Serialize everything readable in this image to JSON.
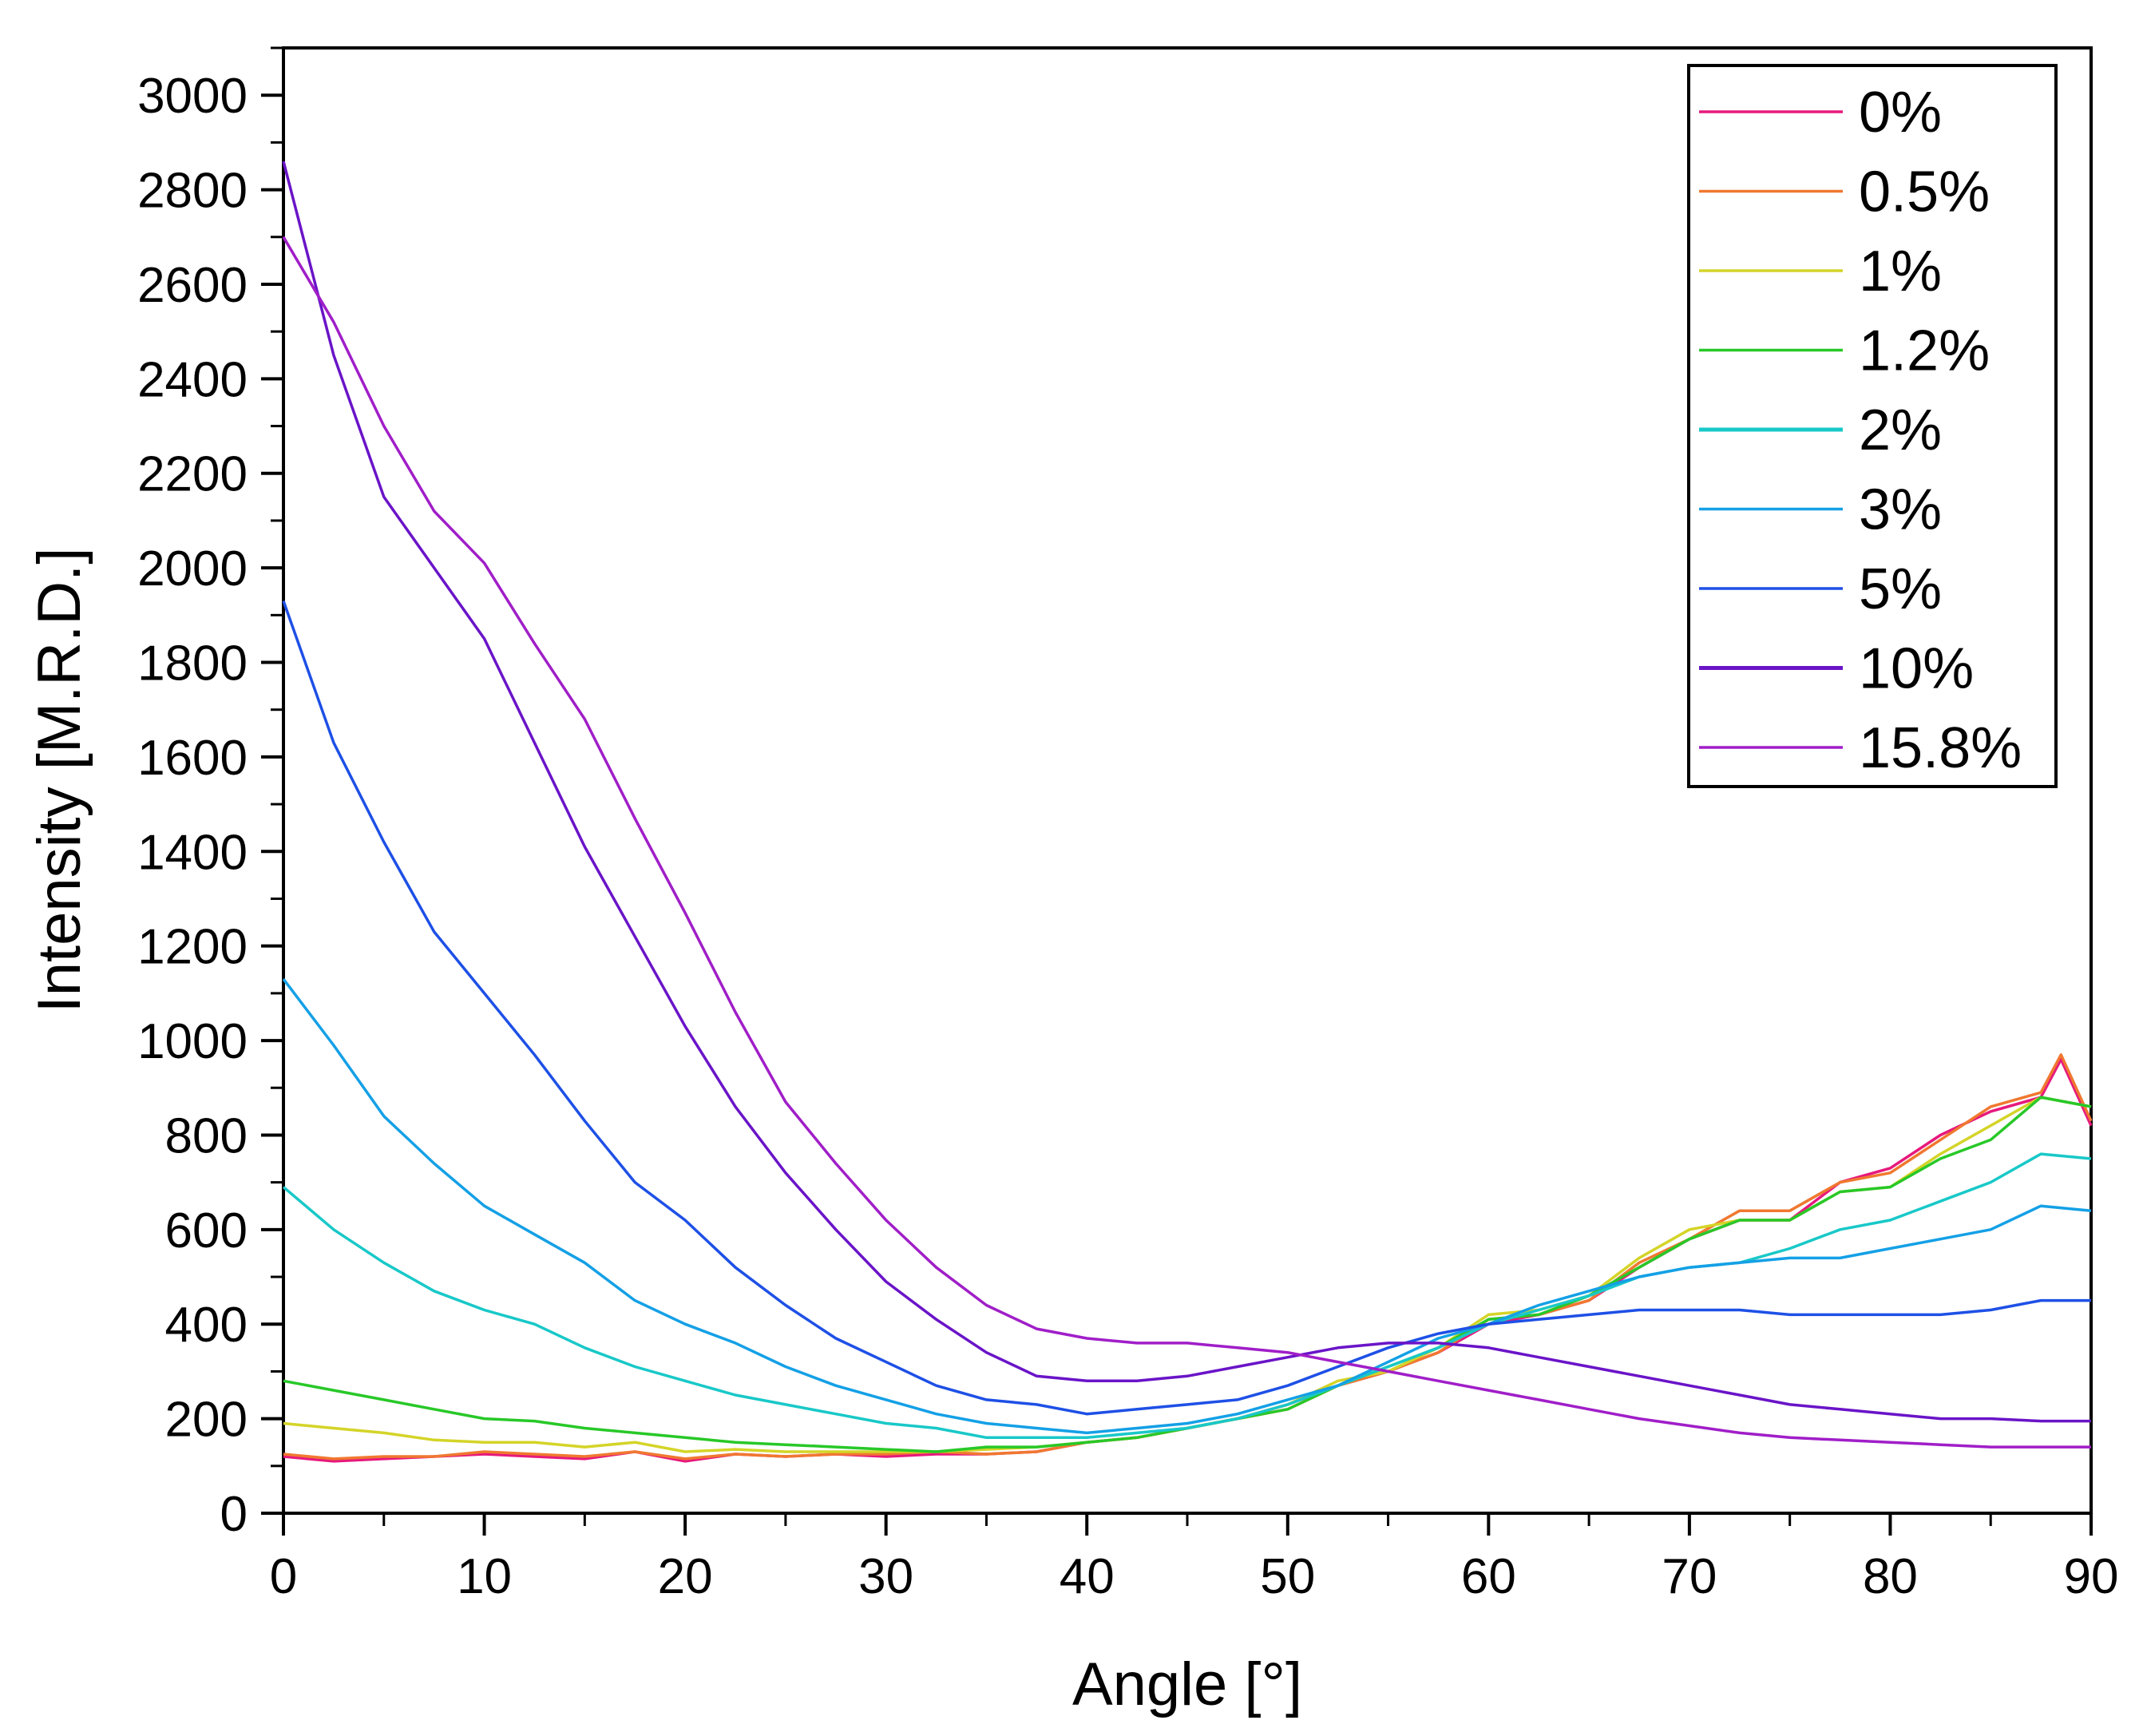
{
  "chart_data": {
    "type": "line",
    "title": "",
    "xlabel": "Angle [°]",
    "ylabel": "Intensity [M.R.D.]",
    "xlim": [
      0,
      90
    ],
    "ylim": [
      0,
      3100
    ],
    "xticks": [
      0,
      10,
      20,
      30,
      40,
      50,
      60,
      70,
      80,
      90
    ],
    "yticks": [
      0,
      200,
      400,
      600,
      800,
      1000,
      1200,
      1400,
      1600,
      1800,
      2000,
      2200,
      2400,
      2600,
      2800,
      3000
    ],
    "grid": false,
    "legend_position": "top-right",
    "series": [
      {
        "name": "0%",
        "color": "#e6197d",
        "x": [
          0,
          2.5,
          5,
          7.5,
          10,
          12.5,
          15,
          17.5,
          20,
          22.5,
          25,
          27.5,
          30,
          32.5,
          35,
          37.5,
          40,
          42.5,
          45,
          47.5,
          50,
          52.5,
          55,
          57.5,
          60,
          62.5,
          65,
          67.5,
          70,
          72.5,
          75,
          77.5,
          80,
          82.5,
          85,
          87.5,
          88.5,
          90
        ],
        "y": [
          120,
          110,
          115,
          120,
          125,
          120,
          115,
          130,
          110,
          125,
          120,
          125,
          120,
          125,
          125,
          130,
          150,
          160,
          180,
          200,
          230,
          270,
          300,
          340,
          400,
          420,
          450,
          520,
          580,
          620,
          620,
          700,
          730,
          800,
          850,
          880,
          960,
          820
        ]
      },
      {
        "name": "0.5%",
        "color": "#f07830",
        "x": [
          0,
          2.5,
          5,
          7.5,
          10,
          12.5,
          15,
          17.5,
          20,
          22.5,
          25,
          27.5,
          30,
          32.5,
          35,
          37.5,
          40,
          42.5,
          45,
          47.5,
          50,
          52.5,
          55,
          57.5,
          60,
          62.5,
          65,
          67.5,
          70,
          72.5,
          75,
          77.5,
          80,
          82.5,
          85,
          87.5,
          88.5,
          90
        ],
        "y": [
          125,
          115,
          120,
          120,
          130,
          125,
          120,
          130,
          115,
          125,
          120,
          125,
          125,
          130,
          125,
          130,
          150,
          160,
          180,
          200,
          220,
          270,
          300,
          340,
          410,
          420,
          450,
          530,
          580,
          640,
          640,
          700,
          720,
          790,
          860,
          890,
          970,
          830
        ]
      },
      {
        "name": "1%",
        "color": "#d4d428",
        "x": [
          0,
          2.5,
          5,
          7.5,
          10,
          12.5,
          15,
          17.5,
          20,
          22.5,
          25,
          27.5,
          30,
          32.5,
          35,
          37.5,
          40,
          42.5,
          45,
          47.5,
          50,
          52.5,
          55,
          57.5,
          60,
          62.5,
          65,
          67.5,
          70,
          72.5,
          75,
          77.5,
          80,
          82.5,
          85,
          87.5,
          90
        ],
        "y": [
          190,
          180,
          170,
          155,
          150,
          150,
          140,
          150,
          130,
          135,
          130,
          130,
          130,
          130,
          135,
          140,
          150,
          160,
          180,
          200,
          230,
          280,
          300,
          350,
          420,
          430,
          460,
          540,
          600,
          620,
          620,
          680,
          690,
          760,
          820,
          880,
          860
        ]
      },
      {
        "name": "1.2%",
        "color": "#28c828",
        "x": [
          0,
          2.5,
          5,
          7.5,
          10,
          12.5,
          15,
          17.5,
          20,
          22.5,
          25,
          27.5,
          30,
          32.5,
          35,
          37.5,
          40,
          42.5,
          45,
          47.5,
          50,
          52.5,
          55,
          57.5,
          60,
          62.5,
          65,
          67.5,
          70,
          72.5,
          75,
          77.5,
          80,
          82.5,
          85,
          87.5,
          90
        ],
        "y": [
          280,
          260,
          240,
          220,
          200,
          195,
          180,
          170,
          160,
          150,
          145,
          140,
          135,
          130,
          140,
          140,
          150,
          160,
          180,
          200,
          220,
          270,
          310,
          350,
          410,
          420,
          460,
          520,
          580,
          620,
          620,
          680,
          690,
          750,
          790,
          880,
          860
        ]
      },
      {
        "name": "2%",
        "color": "#19c8c8",
        "x": [
          0,
          2.5,
          5,
          7.5,
          10,
          12.5,
          15,
          17.5,
          20,
          22.5,
          25,
          27.5,
          30,
          32.5,
          35,
          37.5,
          40,
          42.5,
          45,
          47.5,
          50,
          52.5,
          55,
          57.5,
          60,
          62.5,
          65,
          67.5,
          70,
          72.5,
          75,
          77.5,
          80,
          82.5,
          85,
          87.5,
          90
        ],
        "y": [
          690,
          600,
          530,
          470,
          430,
          400,
          350,
          310,
          280,
          250,
          230,
          210,
          190,
          180,
          160,
          160,
          160,
          170,
          180,
          200,
          230,
          270,
          310,
          350,
          400,
          430,
          460,
          500,
          520,
          530,
          560,
          600,
          620,
          660,
          700,
          760,
          750
        ]
      },
      {
        "name": "3%",
        "color": "#14a0e6",
        "x": [
          0,
          2.5,
          5,
          7.5,
          10,
          12.5,
          15,
          17.5,
          20,
          22.5,
          25,
          27.5,
          30,
          32.5,
          35,
          37.5,
          40,
          42.5,
          45,
          47.5,
          50,
          52.5,
          55,
          57.5,
          60,
          62.5,
          65,
          67.5,
          70,
          72.5,
          75,
          77.5,
          80,
          82.5,
          85,
          87.5,
          90
        ],
        "y": [
          1130,
          990,
          840,
          740,
          650,
          590,
          530,
          450,
          400,
          360,
          310,
          270,
          240,
          210,
          190,
          180,
          170,
          180,
          190,
          210,
          240,
          270,
          320,
          370,
          400,
          440,
          470,
          500,
          520,
          530,
          540,
          540,
          560,
          580,
          600,
          650,
          640
        ]
      },
      {
        "name": "5%",
        "color": "#1e50e6",
        "x": [
          0,
          2.5,
          5,
          7.5,
          10,
          12.5,
          15,
          17.5,
          20,
          22.5,
          25,
          27.5,
          30,
          32.5,
          35,
          37.5,
          40,
          42.5,
          45,
          47.5,
          50,
          52.5,
          55,
          57.5,
          60,
          62.5,
          65,
          67.5,
          70,
          72.5,
          75,
          77.5,
          80,
          82.5,
          85,
          87.5,
          90
        ],
        "y": [
          1930,
          1630,
          1420,
          1230,
          1100,
          970,
          830,
          700,
          620,
          520,
          440,
          370,
          320,
          270,
          240,
          230,
          210,
          220,
          230,
          240,
          270,
          310,
          350,
          380,
          400,
          410,
          420,
          430,
          430,
          430,
          420,
          420,
          420,
          420,
          430,
          450,
          450
        ]
      },
      {
        "name": "10%",
        "color": "#6a14c8",
        "x": [
          0,
          2.5,
          5,
          7.5,
          10,
          12.5,
          15,
          17.5,
          20,
          22.5,
          25,
          27.5,
          30,
          32.5,
          35,
          37.5,
          40,
          42.5,
          45,
          47.5,
          50,
          52.5,
          55,
          57.5,
          60,
          62.5,
          65,
          67.5,
          70,
          72.5,
          75,
          77.5,
          80,
          82.5,
          85,
          87.5,
          90
        ],
        "y": [
          2860,
          2450,
          2150,
          2000,
          1850,
          1630,
          1410,
          1220,
          1030,
          860,
          720,
          600,
          490,
          410,
          340,
          290,
          280,
          280,
          290,
          310,
          330,
          350,
          360,
          360,
          350,
          330,
          310,
          290,
          270,
          250,
          230,
          220,
          210,
          200,
          200,
          195,
          195
        ]
      },
      {
        "name": "15.8%",
        "color": "#a01ec8",
        "x": [
          0,
          2.5,
          5,
          7.5,
          10,
          12.5,
          15,
          17.5,
          20,
          22.5,
          25,
          27.5,
          30,
          32.5,
          35,
          37.5,
          40,
          42.5,
          45,
          47.5,
          50,
          52.5,
          55,
          57.5,
          60,
          62.5,
          65,
          67.5,
          70,
          72.5,
          75,
          77.5,
          80,
          82.5,
          85,
          87.5,
          90
        ],
        "y": [
          2700,
          2520,
          2300,
          2120,
          2010,
          1840,
          1680,
          1470,
          1270,
          1060,
          870,
          740,
          620,
          520,
          440,
          390,
          370,
          360,
          360,
          350,
          340,
          320,
          300,
          280,
          260,
          240,
          220,
          200,
          185,
          170,
          160,
          155,
          150,
          145,
          140,
          140,
          140
        ]
      }
    ]
  }
}
